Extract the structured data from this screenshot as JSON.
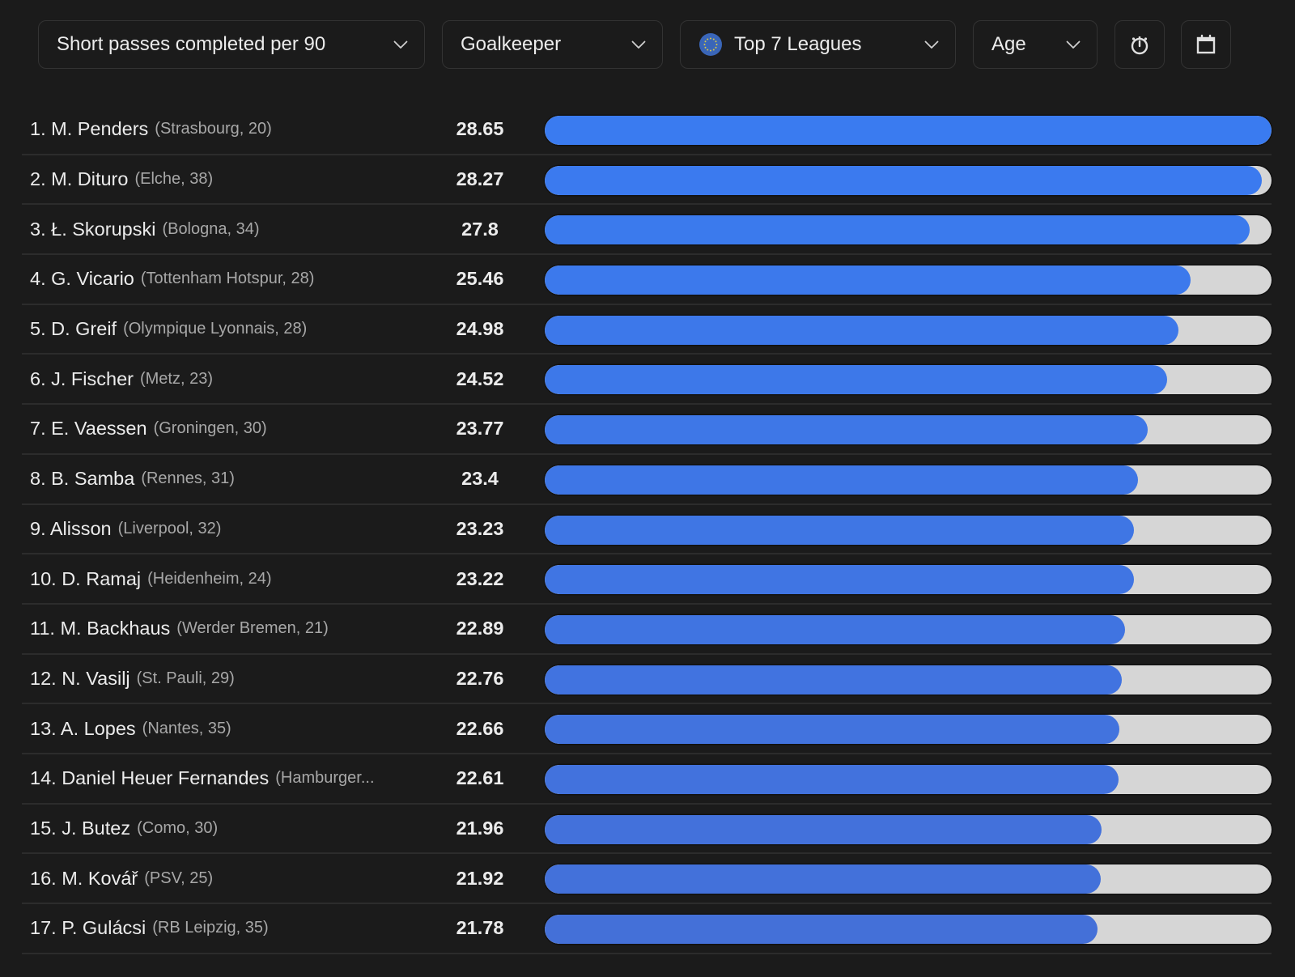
{
  "toolbar": {
    "metric_select": {
      "label": "Short passes completed per 90",
      "icon": "chevron-down-icon"
    },
    "position_select": {
      "label": "Goalkeeper",
      "icon": "chevron-down-icon"
    },
    "league_select": {
      "label": "Top 7 Leagues",
      "flag_icon": "eu-flag-icon",
      "icon": "chevron-down-icon"
    },
    "age_select": {
      "label": "Age",
      "icon": "chevron-down-icon"
    },
    "minutes_button": {
      "icon": "stopwatch-icon"
    },
    "season_button": {
      "icon": "calendar-icon"
    }
  },
  "colors": {
    "background": "#1b1b1b",
    "bar_fill_top": "#3a7bf0",
    "bar_fill_bottom": "#4470d8",
    "bar_track": "#d6d6d6",
    "text_primary": "#ececec",
    "text_secondary": "#a8a8a8"
  },
  "chart_data": {
    "type": "bar",
    "orientation": "horizontal",
    "title": "Short passes completed per 90",
    "xlim": [
      0,
      28.65
    ],
    "grid": false,
    "legend": "none",
    "categories": [
      "1. M. Penders",
      "2. M. Dituro",
      "3. Ł. Skorupski",
      "4. G. Vicario",
      "5. D. Greif",
      "6. J. Fischer",
      "7. E. Vaessen",
      "8. B. Samba",
      "9. Alisson",
      "10. D. Ramaj",
      "11. M. Backhaus",
      "12. N. Vasilj",
      "13. A. Lopes",
      "14. Daniel Heuer Fernandes",
      "15. J. Butez",
      "16. M. Kovář",
      "17. P. Gulácsi"
    ],
    "values": [
      28.65,
      28.27,
      27.8,
      25.46,
      24.98,
      24.52,
      23.77,
      23.4,
      23.23,
      23.22,
      22.89,
      22.76,
      22.66,
      22.61,
      21.96,
      21.92,
      21.78
    ],
    "rows": [
      {
        "name": "1. M. Penders",
        "club": "(Strasbourg, 20)",
        "value": "28.65"
      },
      {
        "name": "2. M. Dituro",
        "club": "(Elche, 38)",
        "value": "28.27"
      },
      {
        "name": "3. Ł. Skorupski",
        "club": "(Bologna, 34)",
        "value": "27.8"
      },
      {
        "name": "4. G. Vicario",
        "club": "(Tottenham Hotspur, 28)",
        "value": "25.46"
      },
      {
        "name": "5. D. Greif",
        "club": "(Olympique Lyonnais, 28)",
        "value": "24.98"
      },
      {
        "name": "6. J. Fischer",
        "club": "(Metz, 23)",
        "value": "24.52"
      },
      {
        "name": "7. E. Vaessen",
        "club": "(Groningen, 30)",
        "value": "23.77"
      },
      {
        "name": "8. B. Samba",
        "club": "(Rennes, 31)",
        "value": "23.4"
      },
      {
        "name": "9. Alisson",
        "club": "(Liverpool, 32)",
        "value": "23.23"
      },
      {
        "name": "10. D. Ramaj",
        "club": "(Heidenheim, 24)",
        "value": "23.22"
      },
      {
        "name": "11. M. Backhaus",
        "club": "(Werder Bremen, 21)",
        "value": "22.89"
      },
      {
        "name": "12. N. Vasilj",
        "club": "(St. Pauli, 29)",
        "value": "22.76"
      },
      {
        "name": "13. A. Lopes",
        "club": "(Nantes, 35)",
        "value": "22.66"
      },
      {
        "name": "14. Daniel Heuer Fernandes",
        "club": "(Hamburger...",
        "value": "22.61"
      },
      {
        "name": "15. J. Butez",
        "club": "(Como, 30)",
        "value": "21.96"
      },
      {
        "name": "16. M. Kovář",
        "club": "(PSV, 25)",
        "value": "21.92"
      },
      {
        "name": "17. P. Gulácsi",
        "club": "(RB Leipzig, 35)",
        "value": "21.78"
      }
    ]
  }
}
